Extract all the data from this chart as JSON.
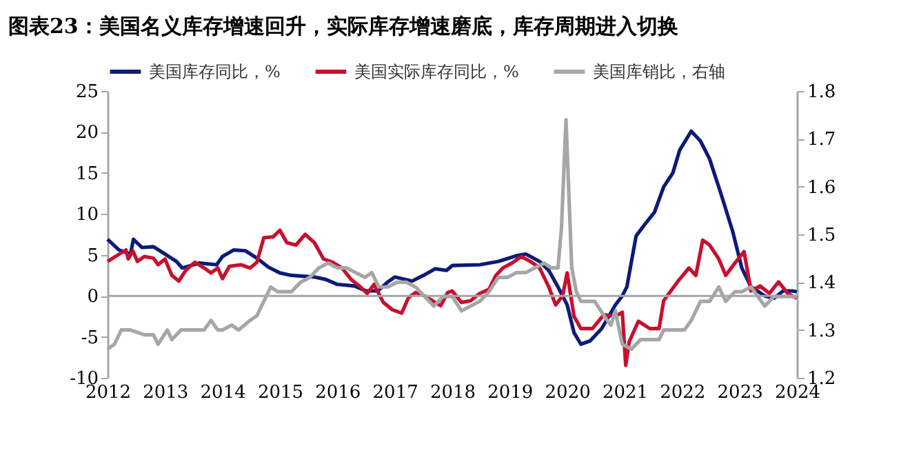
{
  "chart_data": {
    "type": "line",
    "title": "图表23：美国名义库存增速回升，实际库存增速磨底，库存周期进入切换",
    "xlim": [
      2012,
      2024
    ],
    "xticks": [
      2012,
      2013,
      2014,
      2015,
      2016,
      2017,
      2018,
      2019,
      2020,
      2021,
      2022,
      2023,
      2024
    ],
    "ylim": [
      -10,
      25
    ],
    "yticks": [
      -10,
      -5,
      0,
      5,
      10,
      15,
      20,
      25
    ],
    "y2lim": [
      1.2,
      1.8
    ],
    "y2ticks": [
      1.2,
      1.3,
      1.4,
      1.5,
      1.6,
      1.7,
      1.8
    ],
    "grid": false,
    "legend": "top",
    "line_style": "solid",
    "marker": "none",
    "ref_lines": [
      {
        "axis": "y",
        "value": 0,
        "color": "#a6a6a6"
      }
    ],
    "series": [
      {
        "name": "美国库存同比，%",
        "color": "#0c1a78",
        "x": [
          2012.0,
          2012.2,
          2012.4,
          2012.45,
          2012.6,
          2012.8,
          2013.0,
          2013.2,
          2013.3,
          2013.6,
          2013.9,
          2014.0,
          2014.2,
          2014.4,
          2014.6,
          2014.8,
          2015.0,
          2015.2,
          2015.4,
          2015.6,
          2015.8,
          2016.0,
          2016.3,
          2016.5,
          2016.7,
          2016.88,
          2017.0,
          2017.3,
          2017.5,
          2017.7,
          2017.9,
          2018.0,
          2018.48,
          2018.8,
          2019.12,
          2019.28,
          2019.52,
          2019.68,
          2019.84,
          2020.0,
          2020.12,
          2020.24,
          2020.4,
          2020.6,
          2020.84,
          2020.96,
          2021.04,
          2021.2,
          2021.36,
          2021.52,
          2021.68,
          2021.84,
          2021.96,
          2022.16,
          2022.32,
          2022.48,
          2022.68,
          2022.88,
          2023.04,
          2023.2,
          2023.44,
          2023.6,
          2023.76,
          2023.92,
          2024.0
        ],
        "values": [
          6.9,
          5.6,
          5.1,
          6.9,
          5.9,
          6.0,
          5.1,
          4.2,
          3.4,
          4.0,
          3.8,
          4.8,
          5.6,
          5.5,
          4.6,
          3.5,
          2.8,
          2.5,
          2.4,
          2.3,
          2.0,
          1.4,
          1.2,
          0.6,
          0.6,
          1.7,
          2.3,
          1.8,
          2.5,
          3.3,
          3.1,
          3.7,
          3.8,
          4.2,
          4.9,
          5.1,
          4.2,
          3.1,
          1.1,
          -1.1,
          -4.5,
          -5.9,
          -5.5,
          -4.0,
          -1.1,
          0,
          1.1,
          7.3,
          8.8,
          10.2,
          13.3,
          15.0,
          17.8,
          20.1,
          18.9,
          16.7,
          12.4,
          7.9,
          3.4,
          1.1,
          0,
          -0.3,
          0.6,
          0.6,
          0.5
        ]
      },
      {
        "name": "美国实际库存同比，%",
        "color": "#c8102e",
        "x": [
          2012.0,
          2012.16,
          2012.32,
          2012.36,
          2012.44,
          2012.52,
          2012.64,
          2012.8,
          2012.88,
          2013.0,
          2013.12,
          2013.24,
          2013.36,
          2013.52,
          2013.68,
          2013.8,
          2013.92,
          2014.0,
          2014.12,
          2014.32,
          2014.48,
          2014.6,
          2014.72,
          2014.88,
          2015.0,
          2015.12,
          2015.28,
          2015.44,
          2015.6,
          2015.76,
          2015.92,
          2016.08,
          2016.24,
          2016.4,
          2016.52,
          2016.64,
          2016.8,
          2016.96,
          2017.12,
          2017.24,
          2017.36,
          2017.52,
          2017.68,
          2017.8,
          2017.92,
          2018.0,
          2018.16,
          2018.32,
          2018.48,
          2018.64,
          2018.76,
          2018.88,
          2019.04,
          2019.2,
          2019.36,
          2019.52,
          2019.68,
          2019.8,
          2019.92,
          2020.0,
          2020.12,
          2020.24,
          2020.44,
          2020.64,
          2020.84,
          2020.96,
          2021.02,
          2021.08,
          2021.24,
          2021.44,
          2021.6,
          2021.68,
          2021.92,
          2022.12,
          2022.24,
          2022.36,
          2022.48,
          2022.64,
          2022.76,
          2022.92,
          2023.08,
          2023.2,
          2023.36,
          2023.52,
          2023.68,
          2023.84,
          2024.0
        ],
        "values": [
          4.2,
          4.9,
          5.6,
          4.5,
          5.5,
          4.2,
          4.8,
          4.6,
          3.8,
          4.5,
          2.5,
          1.8,
          3.1,
          4.1,
          3.4,
          2.8,
          3.4,
          2.1,
          3.6,
          3.8,
          3.4,
          4.1,
          7.1,
          7.2,
          8.0,
          6.5,
          6.2,
          7.5,
          6.5,
          4.5,
          4.1,
          3.4,
          2.0,
          1.1,
          0.3,
          1.4,
          -0.8,
          -1.7,
          -2.1,
          -0.2,
          0.4,
          0,
          -0.7,
          -1.2,
          0.4,
          0.6,
          -0.8,
          -0.6,
          0.3,
          0.8,
          2.5,
          3.4,
          4.0,
          4.8,
          4.2,
          3.4,
          1.1,
          -1.1,
          0,
          2.8,
          -2.5,
          -4.0,
          -4.0,
          -2.3,
          -2.5,
          -2.0,
          -8.5,
          -5.6,
          -3.1,
          -4.0,
          -4.0,
          -0.6,
          1.7,
          3.4,
          2.5,
          6.8,
          6.2,
          4.5,
          2.5,
          4.0,
          5.4,
          0.6,
          1.2,
          0.3,
          1.7,
          0.3,
          -0.3
        ]
      },
      {
        "name": "美国库销比，右轴",
        "color": "#a6a6a6",
        "axis": "y2",
        "x": [
          2012.0,
          2012.12,
          2012.24,
          2012.4,
          2012.64,
          2012.8,
          2012.88,
          2013.04,
          2013.12,
          2013.28,
          2013.52,
          2013.68,
          2013.8,
          2013.92,
          2014.0,
          2014.16,
          2014.28,
          2014.48,
          2014.6,
          2014.72,
          2014.84,
          2014.96,
          2015.2,
          2015.36,
          2015.52,
          2015.68,
          2015.84,
          2016.0,
          2016.16,
          2016.32,
          2016.48,
          2016.6,
          2016.72,
          2016.88,
          2017.04,
          2017.2,
          2017.36,
          2017.52,
          2017.68,
          2017.84,
          2018.0,
          2018.16,
          2018.32,
          2018.48,
          2018.64,
          2018.8,
          2018.96,
          2019.12,
          2019.28,
          2019.44,
          2019.6,
          2019.72,
          2019.84,
          2019.9,
          2019.98,
          2020.08,
          2020.16,
          2020.24,
          2020.48,
          2020.64,
          2020.76,
          2020.84,
          2020.96,
          2021.12,
          2021.28,
          2021.44,
          2021.6,
          2021.68,
          2021.84,
          2022.04,
          2022.16,
          2022.32,
          2022.48,
          2022.64,
          2022.76,
          2022.92,
          2023.04,
          2023.2,
          2023.44,
          2023.6,
          2023.76,
          2024.0
        ],
        "values": [
          1.26,
          1.27,
          1.3,
          1.3,
          1.29,
          1.29,
          1.27,
          1.3,
          1.28,
          1.3,
          1.3,
          1.3,
          1.32,
          1.3,
          1.3,
          1.31,
          1.3,
          1.32,
          1.33,
          1.36,
          1.39,
          1.38,
          1.38,
          1.4,
          1.41,
          1.43,
          1.44,
          1.43,
          1.43,
          1.42,
          1.41,
          1.42,
          1.39,
          1.39,
          1.4,
          1.4,
          1.39,
          1.37,
          1.35,
          1.37,
          1.37,
          1.34,
          1.35,
          1.36,
          1.38,
          1.41,
          1.41,
          1.42,
          1.42,
          1.43,
          1.44,
          1.43,
          1.43,
          1.51,
          1.74,
          1.43,
          1.38,
          1.36,
          1.36,
          1.33,
          1.31,
          1.34,
          1.27,
          1.26,
          1.28,
          1.28,
          1.28,
          1.3,
          1.3,
          1.3,
          1.32,
          1.36,
          1.36,
          1.39,
          1.36,
          1.38,
          1.38,
          1.39,
          1.35,
          1.37,
          1.37,
          1.37
        ]
      }
    ]
  }
}
